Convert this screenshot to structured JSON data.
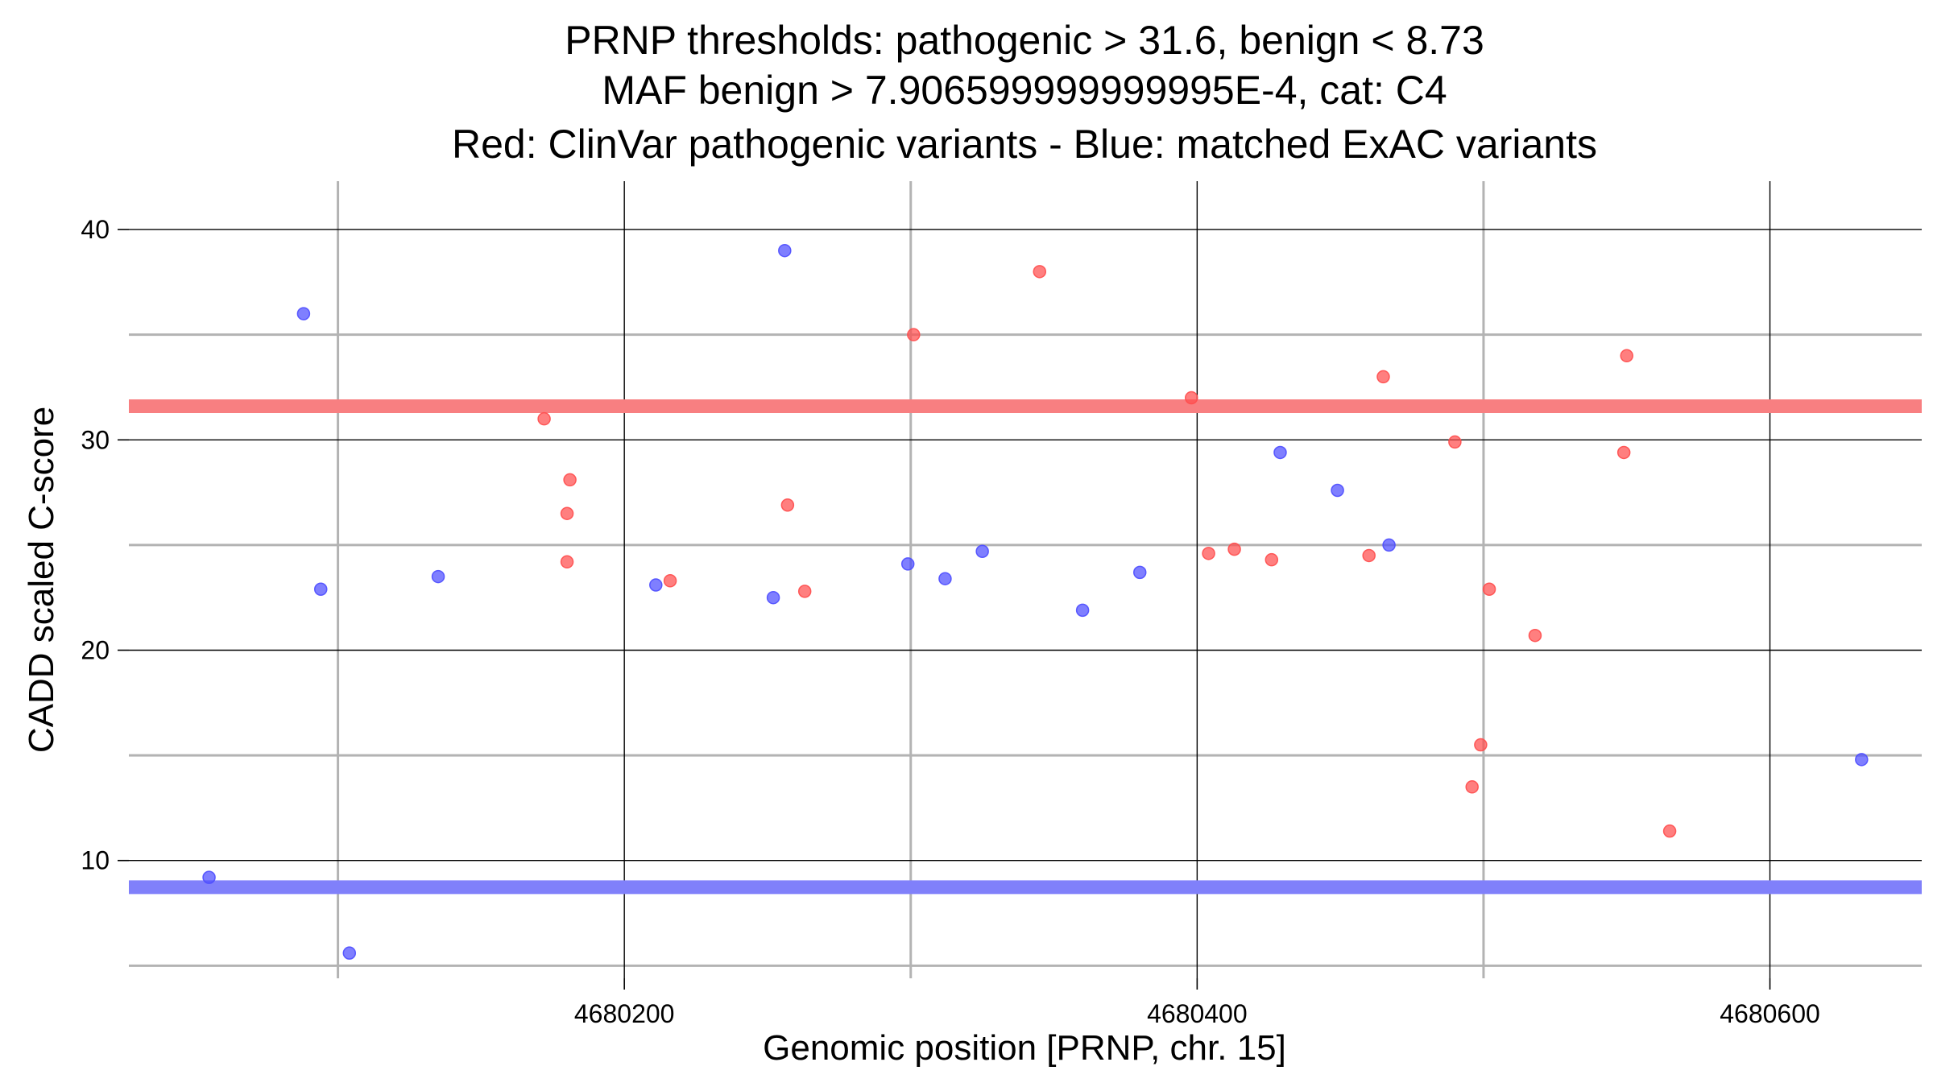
{
  "chart_data": {
    "type": "scatter",
    "title_lines": [
      "PRNP thresholds: pathogenic > 31.6, benign < 8.73",
      "MAF benign > 7.906599999999995E-4, cat: C4",
      "Red: ClinVar pathogenic variants - Blue: matched ExAC variants"
    ],
    "xlabel": "Genomic position [PRNP, chr. 15]",
    "ylabel": "CADD scaled C-score",
    "xlim": [
      4680027,
      4680653
    ],
    "ylim": [
      4.4,
      42.3
    ],
    "x_ticks": [
      4680200,
      4680400,
      4680600
    ],
    "x_tick_labels": [
      "4680200",
      "4680400",
      "4680600"
    ],
    "x_minor_gridlines": [
      4680100,
      4680300,
      4680500
    ],
    "y_ticks": [
      10,
      20,
      30,
      40
    ],
    "y_tick_labels": [
      "10",
      "20",
      "30",
      "40"
    ],
    "y_minor_gridlines": [
      5,
      15,
      25,
      35
    ],
    "thresholds": [
      {
        "name": "pathogenic",
        "value": 31.6,
        "color": "#f87f81"
      },
      {
        "name": "benign",
        "value": 8.73,
        "color": "#8080fa"
      }
    ],
    "series": [
      {
        "name": "ClinVar pathogenic",
        "color": "#ff4d4d",
        "points": [
          [
            4680172,
            31.0
          ],
          [
            4680181,
            28.1
          ],
          [
            4680180,
            26.5
          ],
          [
            4680180,
            24.2
          ],
          [
            4680216,
            23.3
          ],
          [
            4680257,
            26.9
          ],
          [
            4680263,
            22.8
          ],
          [
            4680301,
            35.0
          ],
          [
            4680345,
            38.0
          ],
          [
            4680398,
            32.0
          ],
          [
            4680404,
            24.6
          ],
          [
            4680413,
            24.8
          ],
          [
            4680426,
            24.3
          ],
          [
            4680460,
            24.5
          ],
          [
            4680465,
            33.0
          ],
          [
            4680490,
            29.9
          ],
          [
            4680496,
            13.5
          ],
          [
            4680499,
            15.5
          ],
          [
            4680502,
            22.9
          ],
          [
            4680518,
            20.7
          ],
          [
            4680549,
            29.4
          ],
          [
            4680550,
            34.0
          ],
          [
            4680565,
            11.4
          ]
        ]
      },
      {
        "name": "matched ExAC",
        "color": "#4d4dff",
        "points": [
          [
            4680055,
            9.2
          ],
          [
            4680088,
            36.0
          ],
          [
            4680094,
            22.9
          ],
          [
            4680104,
            5.6
          ],
          [
            4680135,
            23.5
          ],
          [
            4680211,
            23.1
          ],
          [
            4680252,
            22.5
          ],
          [
            4680256,
            39.0
          ],
          [
            4680299,
            24.1
          ],
          [
            4680312,
            23.4
          ],
          [
            4680325,
            24.7
          ],
          [
            4680360,
            21.9
          ],
          [
            4680380,
            23.7
          ],
          [
            4680429,
            29.4
          ],
          [
            4680449,
            27.6
          ],
          [
            4680467,
            25.0
          ],
          [
            4680632,
            14.8
          ]
        ]
      }
    ]
  }
}
